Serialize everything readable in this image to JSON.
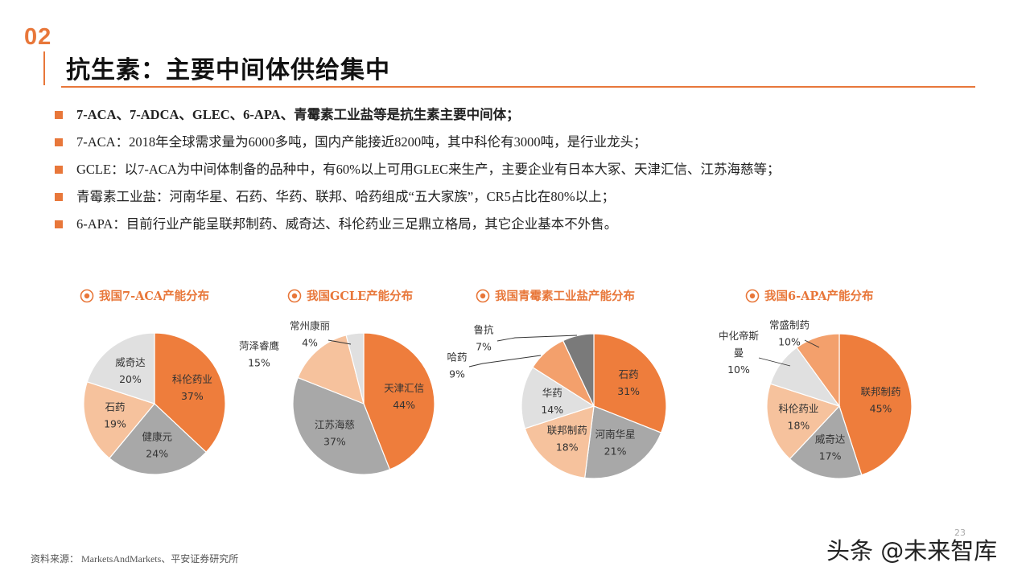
{
  "header": {
    "section_number": "02",
    "title": "抗生素：主要中间体供给集中"
  },
  "bullets": [
    {
      "text": "7-ACA、7-ADCA、GLEC、6-APA、青霉素工业盐等是抗生素主要中间体；",
      "bold": true
    },
    {
      "text": "7-ACA：2018年全球需求量为6000多吨，国内产能接近8200吨，其中科伦有3000吨，是行业龙头；",
      "bold": false
    },
    {
      "text": "GCLE：以7-ACA为中间体制备的品种中，有60%以上可用GLEC来生产，主要企业有日本大冢、天津汇信、江苏海慈等；",
      "bold": false
    },
    {
      "text": "青霉素工业盐：河南华星、石药、华药、联邦、哈药组成“五大家族”，CR5占比在80%以上；",
      "bold": false
    },
    {
      "text": "6-APA：目前行业产能呈联邦制药、威奇达、科伦药业三足鼎立格局，其它企业基本不外售。",
      "bold": false
    }
  ],
  "colors": {
    "accent": "#e8773a",
    "orange": "#ee7d3c",
    "light_orange": "#f6c29d",
    "gray": "#a8a8a8",
    "light_gray": "#e0e0e0",
    "dark_gray": "#7a7a7a",
    "mid_orange": "#f3a06c"
  },
  "chart_data": [
    {
      "type": "pie",
      "title": "我国7-ACA产能分布",
      "slices": [
        {
          "name": "科伦药业",
          "value": 37,
          "label": "37%",
          "color": "#ee7d3c"
        },
        {
          "name": "健康元",
          "value": 24,
          "label": "24%",
          "color": "#a8a8a8"
        },
        {
          "name": "石药",
          "value": 19,
          "label": "19%",
          "color": "#f6c29d"
        },
        {
          "name": "威奇达",
          "value": 20,
          "label": "20%",
          "color": "#e0e0e0"
        }
      ]
    },
    {
      "type": "pie",
      "title": "我国GCLE产能分布",
      "slices": [
        {
          "name": "天津汇信",
          "value": 44,
          "label": "44%",
          "color": "#ee7d3c"
        },
        {
          "name": "江苏海慈",
          "value": 37,
          "label": "37%",
          "color": "#a8a8a8"
        },
        {
          "name": "菏泽睿鹰",
          "value": 15,
          "label": "15%",
          "color": "#f6c29d"
        },
        {
          "name": "常州康丽",
          "value": 4,
          "label": "4%",
          "color": "#e0e0e0"
        }
      ]
    },
    {
      "type": "pie",
      "title": "我国青霉素工业盐产能分布",
      "slices": [
        {
          "name": "石药",
          "value": 31,
          "label": "31%",
          "color": "#ee7d3c"
        },
        {
          "name": "河南华星",
          "value": 21,
          "label": "21%",
          "color": "#a8a8a8"
        },
        {
          "name": "联邦制药",
          "value": 18,
          "label": "18%",
          "color": "#f6c29d"
        },
        {
          "name": "华药",
          "value": 14,
          "label": "14%",
          "color": "#e0e0e0"
        },
        {
          "name": "哈药",
          "value": 9,
          "label": "9%",
          "color": "#f3a06c"
        },
        {
          "name": "鲁抗",
          "value": 7,
          "label": "7%",
          "color": "#7a7a7a"
        }
      ]
    },
    {
      "type": "pie",
      "title": "我国6-APA产能分布",
      "slices": [
        {
          "name": "联邦制药",
          "value": 45,
          "label": "45%",
          "color": "#ee7d3c"
        },
        {
          "name": "威奇达",
          "value": 17,
          "label": "17%",
          "color": "#a8a8a8"
        },
        {
          "name": "科伦药业",
          "value": 18,
          "label": "18%",
          "color": "#f6c29d"
        },
        {
          "name": "中化帝斯曼",
          "value": 10,
          "label": "10%",
          "color": "#e0e0e0"
        },
        {
          "name": "常盛制药",
          "value": 10,
          "label": "10%",
          "color": "#f3a06c"
        }
      ]
    }
  ],
  "footer": {
    "source": "资料来源： MarketsAndMarkets、平安证券研究所",
    "page_number": "23",
    "watermark": "头条 @未来智库"
  }
}
